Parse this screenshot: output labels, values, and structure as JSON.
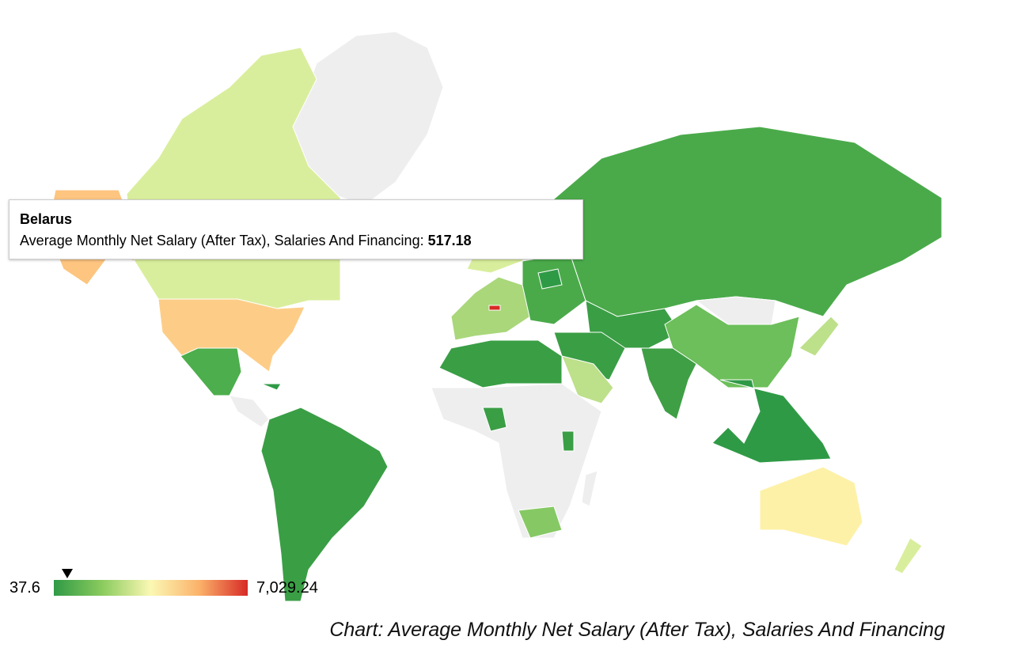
{
  "chart_data": {
    "type": "heatmap",
    "subtype": "geo-choropleth",
    "title": "Chart: Average Monthly Net Salary (After Tax), Salaries And Financing",
    "color_scale": {
      "min": 37.6,
      "max": 7029.24,
      "min_label": "37.6",
      "max_label": "7,029.24",
      "colors": [
        "#2f9a46",
        "#8bcb5e",
        "#fbf8b4",
        "#fbb26a",
        "#d72a26"
      ],
      "no_data_color": "#eeeeee"
    },
    "highlighted": {
      "country": "Belarus",
      "metric": "Average Monthly Net Salary (After Tax), Salaries And Financing:",
      "value": 517.18,
      "value_label": "517.18"
    }
  }
}
